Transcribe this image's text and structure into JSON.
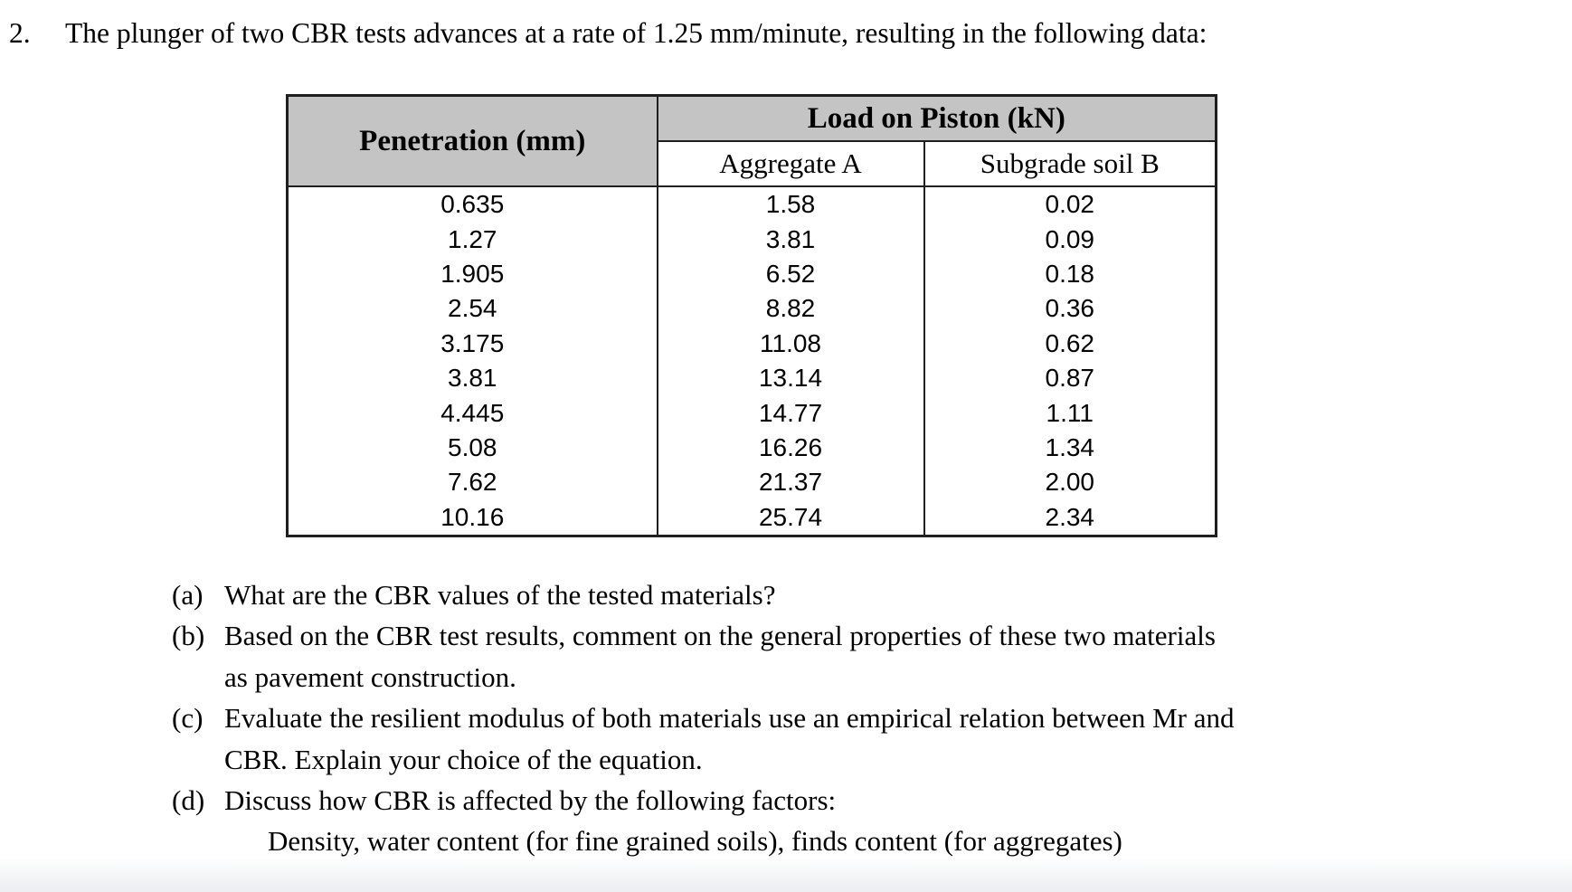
{
  "title": {
    "number": "2.",
    "text": "The plunger of two CBR tests advances at a rate of 1.25 mm/minute, resulting in the following data:"
  },
  "table": {
    "header_bg": "#c4c4c4",
    "headers": {
      "penetration": "Penetration (mm)",
      "load_group": "Load on Piston (kN)",
      "aggregate_a": "Aggregate A",
      "subgrade_b": "Subgrade soil B"
    },
    "rows": [
      {
        "pen": "0.635",
        "a": "1.58",
        "b": "0.02"
      },
      {
        "pen": "1.27",
        "a": "3.81",
        "b": "0.09"
      },
      {
        "pen": "1.905",
        "a": "6.52",
        "b": "0.18"
      },
      {
        "pen": "2.54",
        "a": "8.82",
        "b": "0.36"
      },
      {
        "pen": "3.175",
        "a": "11.08",
        "b": "0.62"
      },
      {
        "pen": "3.81",
        "a": "13.14",
        "b": "0.87"
      },
      {
        "pen": "4.445",
        "a": "14.77",
        "b": "1.11"
      },
      {
        "pen": "5.08",
        "a": "16.26",
        "b": "1.34"
      },
      {
        "pen": "7.62",
        "a": "21.37",
        "b": "2.00"
      },
      {
        "pen": "10.16",
        "a": "25.74",
        "b": "2.34"
      }
    ]
  },
  "questions": {
    "lines": [
      {
        "label": "(a)",
        "text": "What are the CBR values of the tested materials?"
      },
      {
        "label": "(b)",
        "text": "Based on the CBR test results, comment on the general properties of these two materials"
      },
      {
        "label": "",
        "text": "as pavement construction."
      },
      {
        "label": "(c)",
        "text": "Evaluate the resilient modulus of both materials use an empirical relation between Mr and"
      },
      {
        "label": "",
        "text": "CBR. Explain your choice of the equation."
      },
      {
        "label": "(d)",
        "text": "Discuss how CBR is affected by the following factors:"
      },
      {
        "label": "",
        "text": "Density, water content (for fine grained soils), finds content (for aggregates)"
      }
    ]
  }
}
